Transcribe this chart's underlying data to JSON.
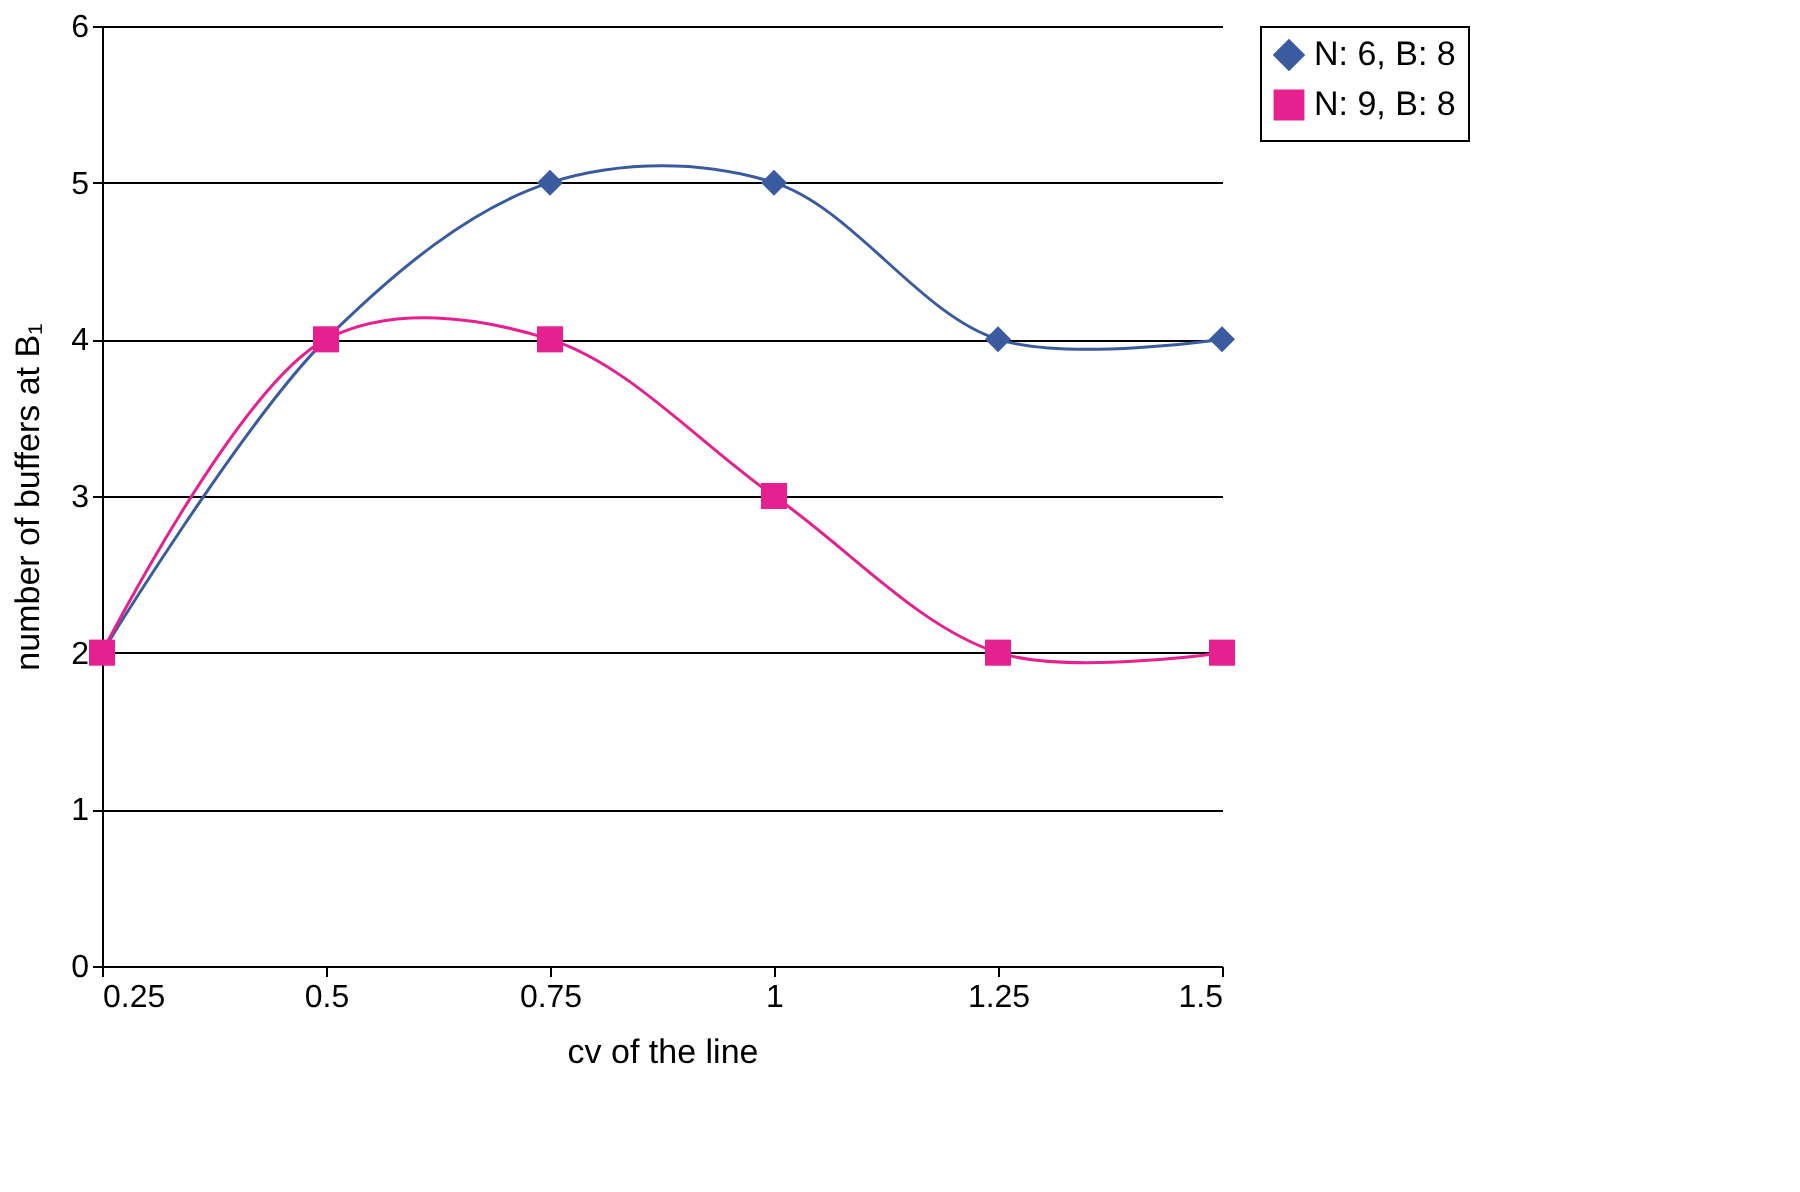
{
  "chart_data": {
    "type": "line",
    "xlabel": "cv of the line",
    "ylabel": "number of buffers at B₁",
    "x": [
      0.25,
      0.5,
      0.75,
      1,
      1.25,
      1.5
    ],
    "series": [
      {
        "name": "N: 6, B: 8",
        "color": "#3a5ba0",
        "marker": "diamond",
        "values": [
          2,
          4,
          5,
          5,
          4,
          4
        ]
      },
      {
        "name": "N: 9, B: 8",
        "color": "#e6208e",
        "marker": "square",
        "values": [
          2,
          4,
          4,
          3,
          2,
          2
        ]
      }
    ],
    "xlim": [
      0.25,
      1.5
    ],
    "xticks": [
      0.25,
      0.5,
      0.75,
      1,
      1.25,
      1.5
    ],
    "ylim": [
      0,
      6
    ],
    "yticks": [
      0,
      1,
      2,
      3,
      4,
      5,
      6
    ],
    "grid": "y",
    "legend": "right",
    "line_style": "solid"
  }
}
